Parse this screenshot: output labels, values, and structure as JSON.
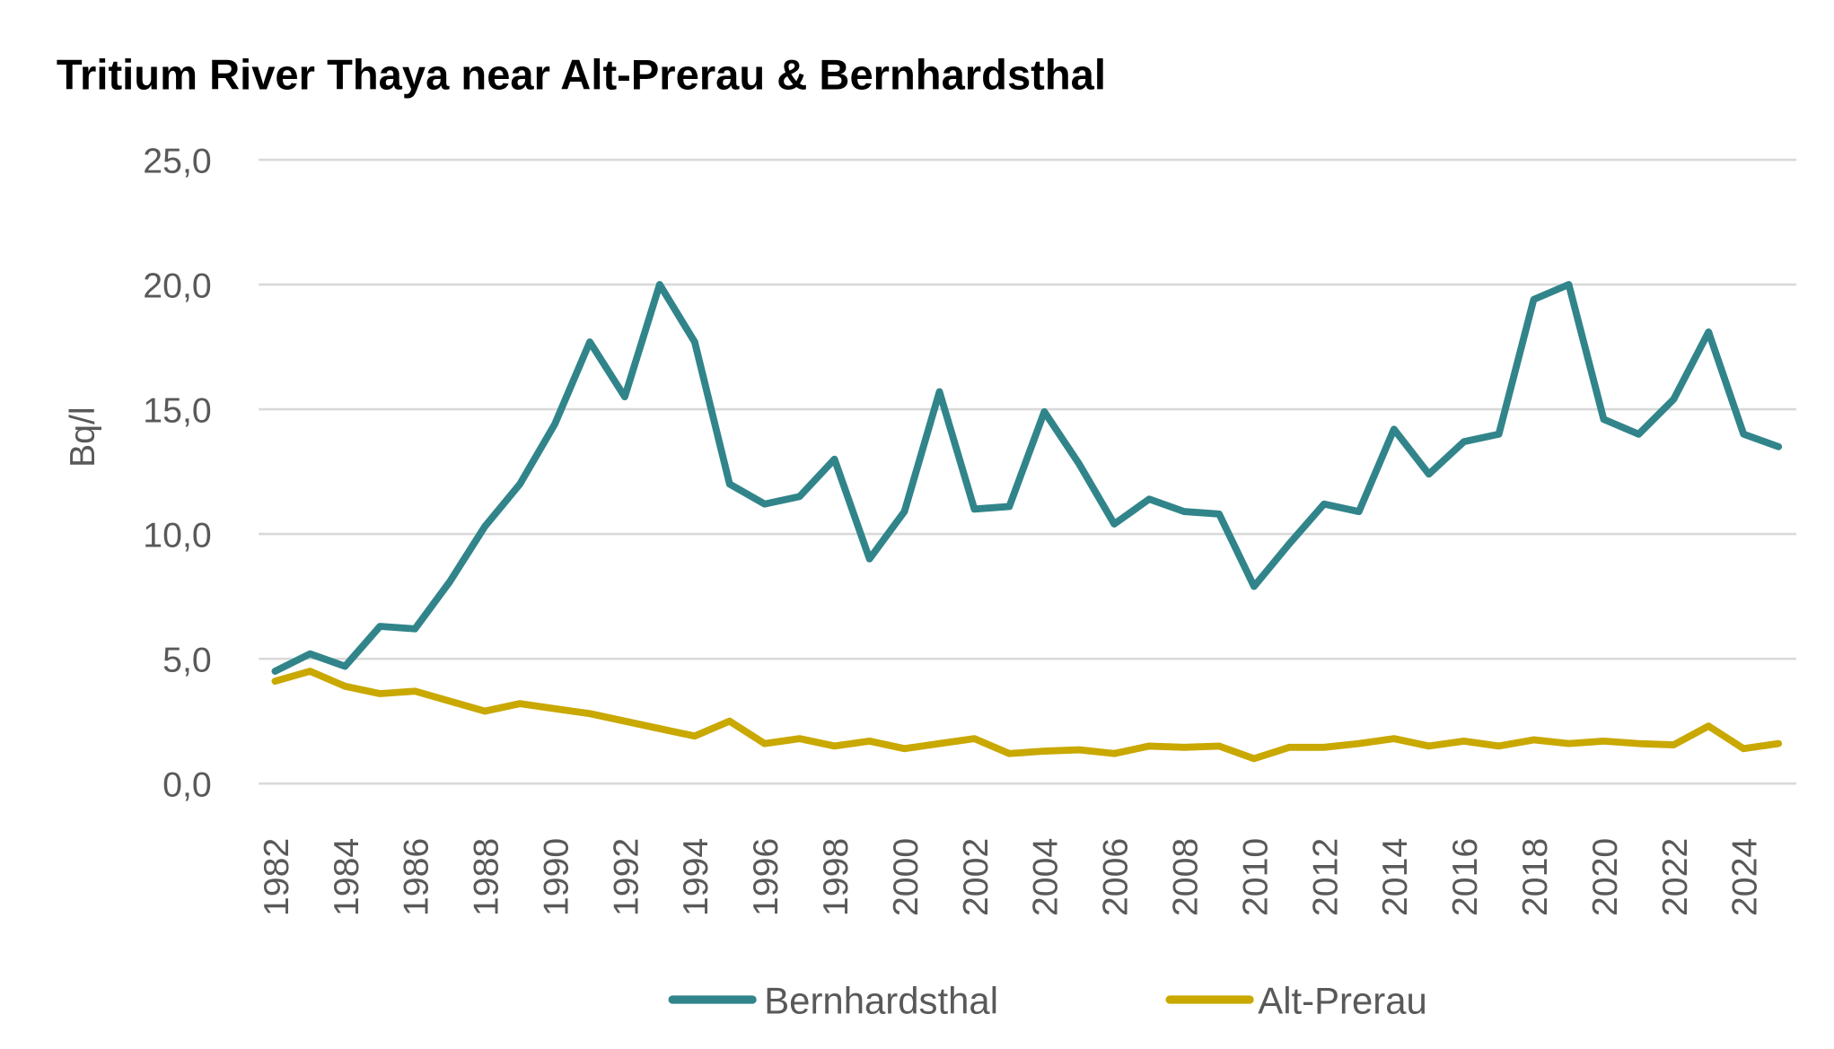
{
  "chart_data": {
    "type": "line",
    "title": "Tritium River Thaya near Alt-Prerau & Bernhardsthal",
    "xlabel": "",
    "ylabel": "Bq/l",
    "ylim": [
      0,
      25
    ],
    "yticks": [
      "0,0",
      "5,0",
      "10,0",
      "15,0",
      "20,0",
      "25,0"
    ],
    "ytick_values": [
      0,
      5,
      10,
      15,
      20,
      25
    ],
    "xticks": [
      "1982",
      "1984",
      "1986",
      "1988",
      "1990",
      "1992",
      "1994",
      "1996",
      "1998",
      "2000",
      "2002",
      "2004",
      "2006",
      "2008",
      "2010",
      "2012",
      "2014",
      "2016",
      "2018",
      "2020",
      "2022",
      "2024"
    ],
    "x": [
      1982,
      1983,
      1984,
      1985,
      1986,
      1987,
      1988,
      1989,
      1990,
      1991,
      1992,
      1993,
      1994,
      1995,
      1996,
      1997,
      1998,
      1999,
      2000,
      2001,
      2002,
      2003,
      2004,
      2005,
      2006,
      2007,
      2008,
      2009,
      2010,
      2011,
      2012,
      2013,
      2014,
      2015,
      2016,
      2017,
      2018,
      2019,
      2020,
      2021,
      2022,
      2023,
      2024,
      2025
    ],
    "grid": true,
    "legend_position": "bottom",
    "series": [
      {
        "name": "Bernhardsthal",
        "color": "#31858a",
        "values": [
          4.5,
          5.2,
          4.7,
          6.3,
          6.2,
          8.1,
          10.3,
          12.0,
          14.4,
          17.7,
          15.5,
          20.0,
          17.7,
          12.0,
          11.2,
          11.5,
          13.0,
          9.0,
          10.9,
          15.7,
          11.0,
          11.1,
          14.9,
          12.8,
          10.4,
          11.4,
          10.9,
          10.8,
          7.9,
          9.6,
          11.2,
          10.9,
          14.2,
          12.4,
          13.7,
          14.0,
          19.4,
          20.0,
          14.6,
          14.0,
          15.4,
          18.1,
          14.0,
          13.5
        ]
      },
      {
        "name": "Alt-Prerau",
        "color": "#c9a800",
        "values": [
          4.1,
          4.5,
          3.9,
          3.6,
          3.7,
          3.3,
          2.9,
          3.2,
          3.0,
          2.8,
          2.5,
          2.2,
          1.9,
          2.5,
          1.6,
          1.8,
          1.5,
          1.7,
          1.4,
          1.6,
          1.8,
          1.2,
          1.3,
          1.35,
          1.2,
          1.5,
          1.45,
          1.5,
          1.0,
          1.45,
          1.45,
          1.6,
          1.8,
          1.5,
          1.7,
          1.5,
          1.75,
          1.6,
          1.7,
          1.6,
          1.55,
          2.3,
          1.4,
          1.6
        ]
      }
    ]
  }
}
